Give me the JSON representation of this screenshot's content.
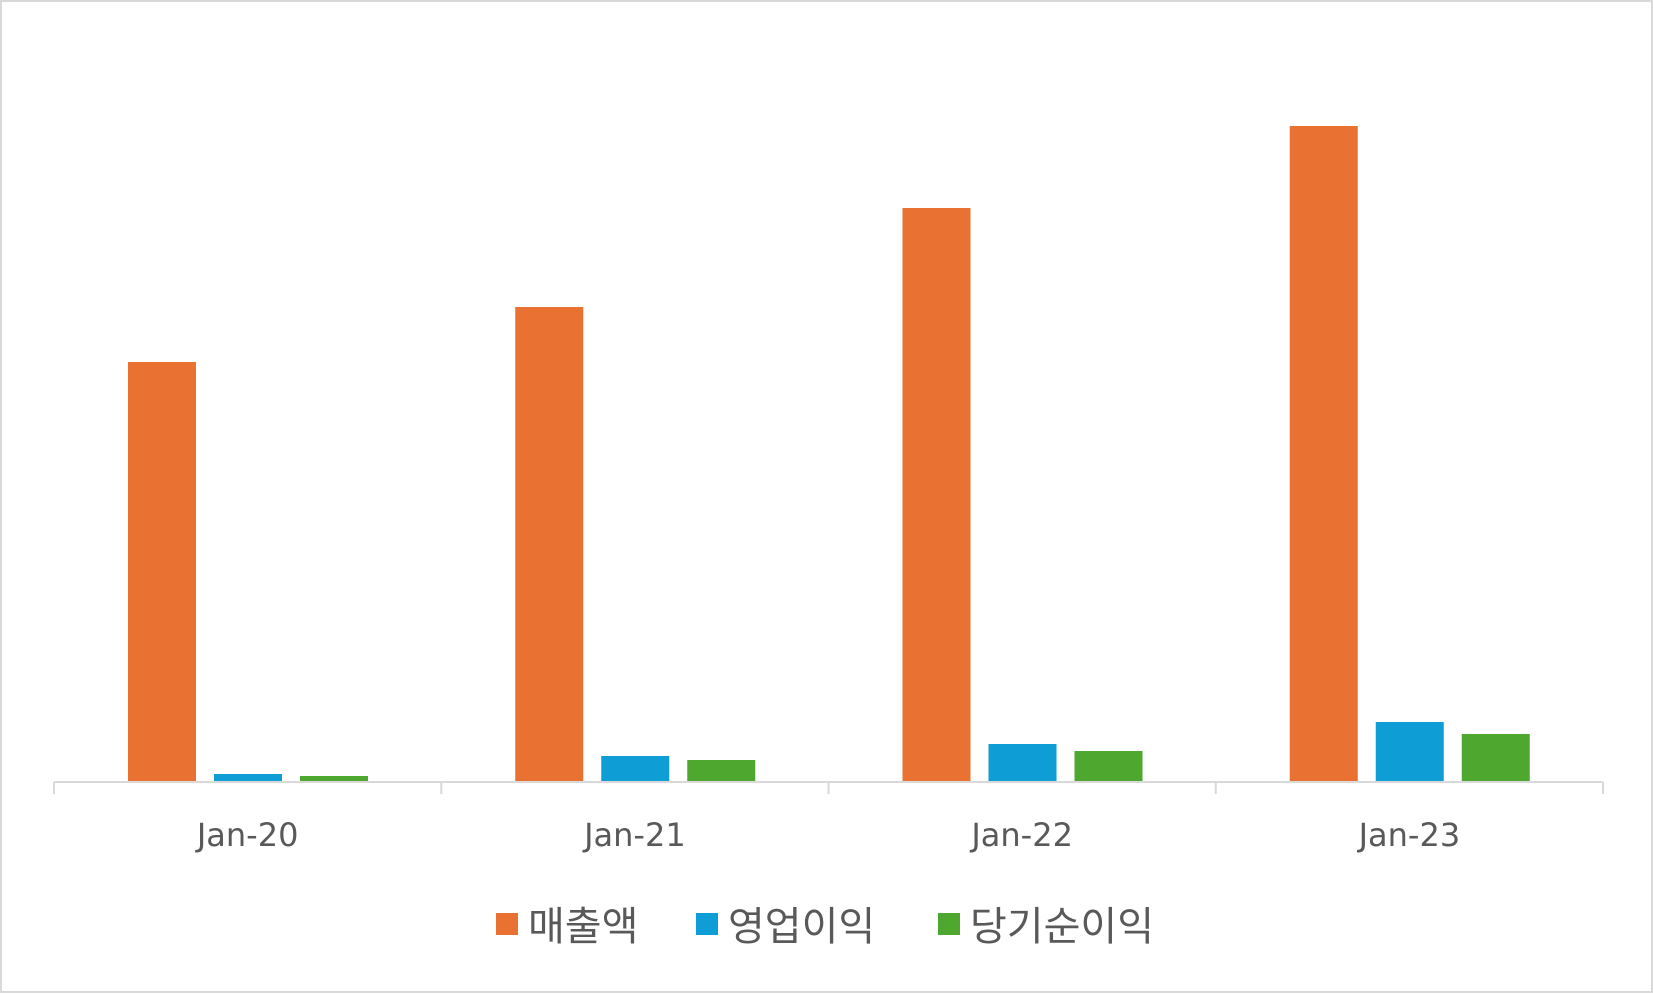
{
  "chart_data": {
    "type": "bar",
    "title": "",
    "xlabel": "",
    "ylabel": "",
    "categories": [
      "Jan-20",
      "Jan-21",
      "Jan-22",
      "Jan-23"
    ],
    "series": [
      {
        "name": "매출액",
        "color": "#E97132",
        "values": [
          420,
          475,
          574,
          656
        ]
      },
      {
        "name": "영업이익",
        "color": "#0E9ED5",
        "values": [
          8,
          26,
          38,
          60
        ]
      },
      {
        "name": "당기순이익",
        "color": "#4EA72E",
        "values": [
          6,
          22,
          31,
          48
        ]
      }
    ],
    "ylim": [
      0,
      700
    ],
    "y_axis_visible": false,
    "grid": false,
    "legend": "bottom",
    "axis_color": "#d9d9d9",
    "tick_label_color": "#595959"
  }
}
